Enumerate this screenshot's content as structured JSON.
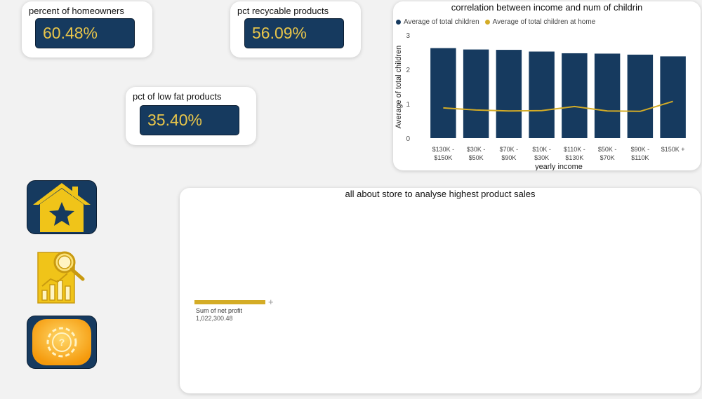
{
  "kpis": [
    {
      "title": "percent of homeowners",
      "value": "60.48%"
    },
    {
      "title": "pct recycable products",
      "value": "56.09%"
    },
    {
      "title": "pct of low fat products",
      "value": "35.40%"
    }
  ],
  "combo_chart": {
    "title": "correlation between income and num of childrin",
    "legend": [
      "Average of total children",
      "Average of total children at home"
    ],
    "ylabel": "Average of total children",
    "xlabel": "yearly income",
    "y_ticks": [
      "3",
      "2",
      "1",
      "0"
    ]
  },
  "store_panel": {
    "title": "all about store to analyse highest product sales",
    "metric_label": "Sum of net profit",
    "metric_value": "1,022,300.48"
  },
  "nav_icons": [
    "home-star-icon",
    "report-analytics-icon",
    "settings-help-icon"
  ],
  "colors": {
    "navy": "#163a5f",
    "gold": "#d4ac26",
    "kpi_text": "#e8c54a"
  },
  "chart_data": {
    "type": "bar",
    "categories": [
      "$130K - $150K",
      "$30K - $50K",
      "$70K - $90K",
      "$10K - $30K",
      "$110K - $130K",
      "$50K - $70K",
      "$90K - $110K",
      "$150K +"
    ],
    "series": [
      {
        "name": "Average of total children",
        "type": "bar",
        "values": [
          2.62,
          2.58,
          2.57,
          2.52,
          2.47,
          2.46,
          2.43,
          2.38
        ]
      },
      {
        "name": "Average of total children at home",
        "type": "line",
        "values": [
          0.88,
          0.82,
          0.79,
          0.8,
          0.92,
          0.79,
          0.78,
          1.07
        ]
      }
    ],
    "ylim": [
      0,
      3
    ],
    "xlabel": "yearly income",
    "ylabel": "Average of total children"
  }
}
